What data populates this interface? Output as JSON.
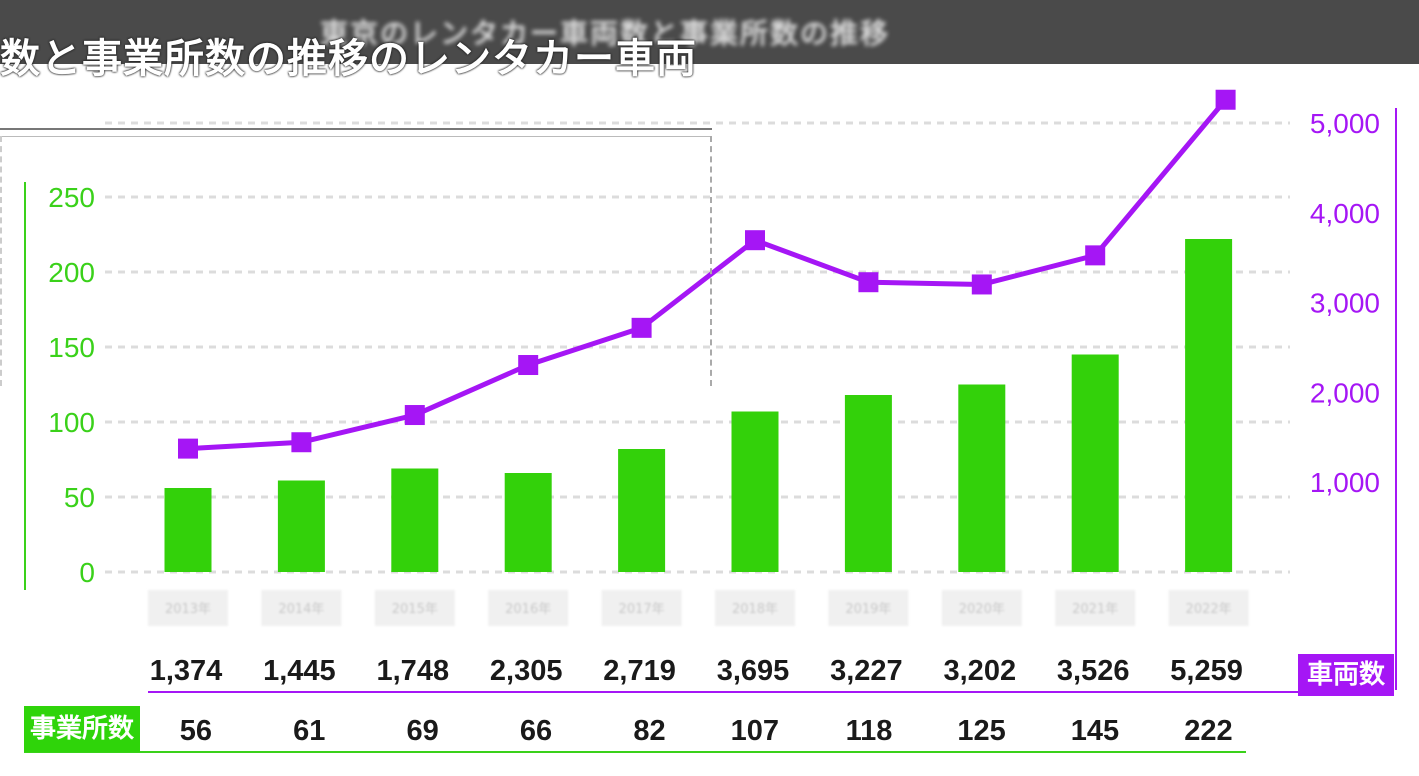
{
  "header": {
    "title_blurred": "東京のレンタカー車両数と事業所数の推移",
    "overlay_title": "数と事業所数の推移のレンタカー車両"
  },
  "colors": {
    "office_bar": "#33d10a",
    "vehicle_line": "#a516f5",
    "left_axis": "#3ad11a",
    "right_axis": "#a516f5"
  },
  "labels": {
    "office_count": "事業所数",
    "vehicle_count": "車両数"
  },
  "chart_data": {
    "type": "bar",
    "categories": [
      "2013年",
      "2014年",
      "2015年",
      "2016年",
      "2017年",
      "2018年",
      "2019年",
      "2020年",
      "2021年",
      "2022年"
    ],
    "series": [
      {
        "name": "事業所数",
        "type": "bar",
        "axis": "left",
        "values": [
          56,
          61,
          69,
          66,
          82,
          107,
          118,
          125,
          145,
          222
        ]
      },
      {
        "name": "車両数",
        "type": "line",
        "axis": "right",
        "values": [
          1374,
          1445,
          1748,
          2305,
          2719,
          3695,
          3227,
          3202,
          3526,
          5259
        ]
      }
    ],
    "left_axis": {
      "ylim": [
        0,
        250
      ],
      "ticks": [
        "0",
        "50",
        "100",
        "150",
        "200",
        "250"
      ]
    },
    "right_axis": {
      "ylim": [
        0,
        5000
      ],
      "ticks": [
        "1,000",
        "2,000",
        "3,000",
        "4,000",
        "5,000"
      ]
    },
    "vehicle_labels": [
      "1,374",
      "1,445",
      "1,748",
      "2,305",
      "2,719",
      "3,695",
      "3,227",
      "3,202",
      "3,526",
      "5,259"
    ],
    "office_labels": [
      "56",
      "61",
      "69",
      "66",
      "82",
      "107",
      "118",
      "125",
      "145",
      "222"
    ],
    "grid": true,
    "legend": "none"
  }
}
